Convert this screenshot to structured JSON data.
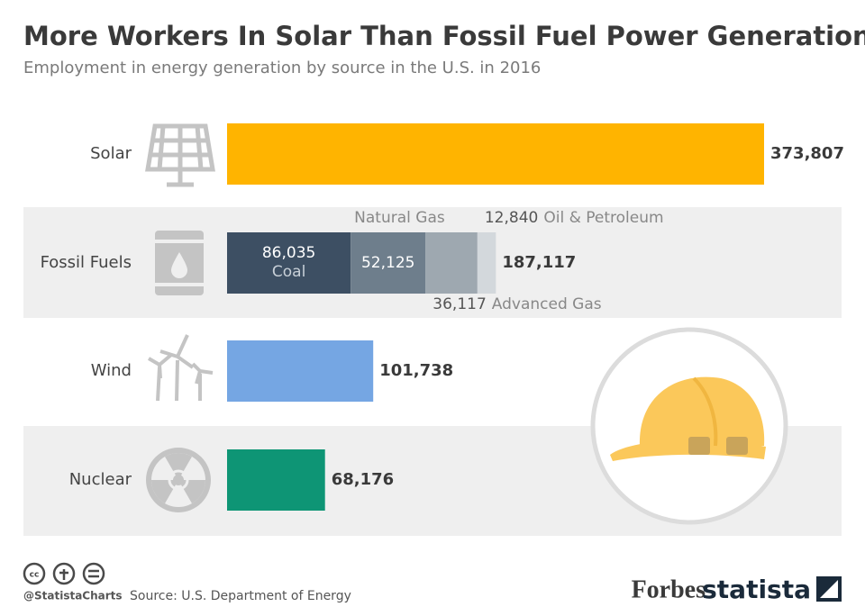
{
  "chart_data": {
    "type": "bar",
    "orientation": "horizontal",
    "title": "More Workers In Solar Than Fossil Fuel Power Generation",
    "subtitle": "Employment in energy generation by source in the U.S. in 2016",
    "bars": [
      {
        "category": "Solar",
        "value": 373807,
        "value_label": "373,807",
        "color": "#ffb400"
      },
      {
        "category": "Fossil Fuels",
        "value": 187117,
        "value_label": "187,117",
        "segments": [
          {
            "name": "Coal",
            "value": 86035,
            "value_label": "86,035",
            "color": "#3d4f63"
          },
          {
            "name": "Natural Gas",
            "value": 52125,
            "value_label": "52,125",
            "color": "#6e7e8c"
          },
          {
            "name": "Advanced Gas",
            "value": 36117,
            "value_label": "36,117",
            "color": "#9ea8b0"
          },
          {
            "name": "Oil & Petroleum",
            "value": 12840,
            "value_label": "12,840",
            "color": "#d3d8dc"
          }
        ]
      },
      {
        "category": "Wind",
        "value": 101738,
        "value_label": "101,738",
        "color": "#75a6e3"
      },
      {
        "category": "Nuclear",
        "value": 68176,
        "value_label": "68,176",
        "color": "#0e9575"
      }
    ]
  },
  "footer": {
    "handle": "@StatistaCharts",
    "source": "Source: U.S. Department of Energy",
    "partner": "Forbes",
    "brand": "statista"
  }
}
